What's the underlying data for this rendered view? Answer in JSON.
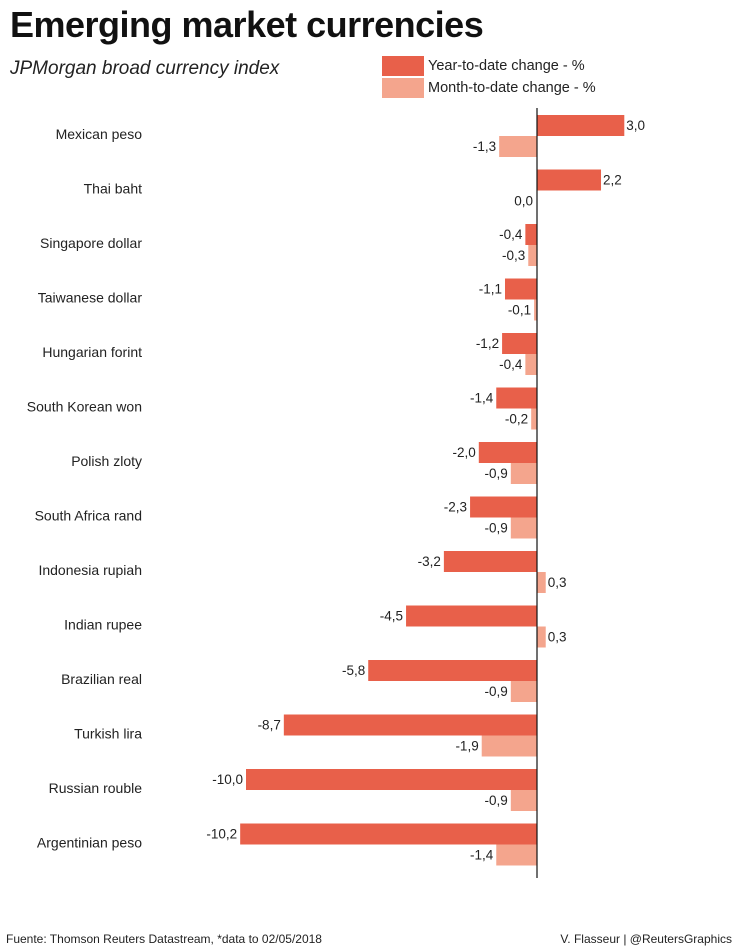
{
  "title": "Emerging market currencies",
  "subtitle": "JPMorgan broad currency index",
  "footer": {
    "source": "Fuente: Thomson Reuters Datastream, *data to 02/05/2018",
    "credit": "V. Flasseur | @ReutersGraphics"
  },
  "chart_data": {
    "type": "bar",
    "orientation": "horizontal",
    "title": "Emerging market currencies",
    "subtitle": "JPMorgan broad currency index",
    "categories": [
      "Mexican peso",
      "Thai baht",
      "Singapore dollar",
      "Taiwanese dollar",
      "Hungarian forint",
      "South Korean won",
      "Polish zloty",
      "South Africa rand",
      "Indonesia rupiah",
      "Indian rupee",
      "Brazilian real",
      "Turkish lira",
      "Russian rouble",
      "Argentinian peso"
    ],
    "series": [
      {
        "name": "Year-to-date change - %",
        "color": "#e8604a",
        "values": [
          3.0,
          2.2,
          -0.4,
          -1.1,
          -1.2,
          -1.4,
          -2.0,
          -2.3,
          -3.2,
          -4.5,
          -5.8,
          -8.7,
          -10.0,
          -10.2
        ],
        "labels": [
          "3,0",
          "2,2",
          "-0,4",
          "-1,1",
          "-1,2",
          "-1,4",
          "-2,0",
          "-2,3",
          "-3,2",
          "-4,5",
          "-5,8",
          "-8,7",
          "-10,0",
          "-10,2"
        ]
      },
      {
        "name": "Month-to-date change - %",
        "color": "#f4a58d",
        "values": [
          -1.3,
          0.0,
          -0.3,
          -0.1,
          -0.4,
          -0.2,
          -0.9,
          -0.9,
          0.3,
          0.3,
          -0.9,
          -1.9,
          -0.9,
          -1.4
        ],
        "labels": [
          "-1,3",
          "0,0",
          "-0,3",
          "-0,1",
          "-0,4",
          "-0,2",
          "-0,9",
          "-0,9",
          "0,3",
          "0,3",
          "-0,9",
          "-1,9",
          "-0,9",
          "-1,4"
        ]
      }
    ],
    "xlim": [
      -10.2,
      3.0
    ],
    "grid": false,
    "legend_position": "top-right"
  }
}
